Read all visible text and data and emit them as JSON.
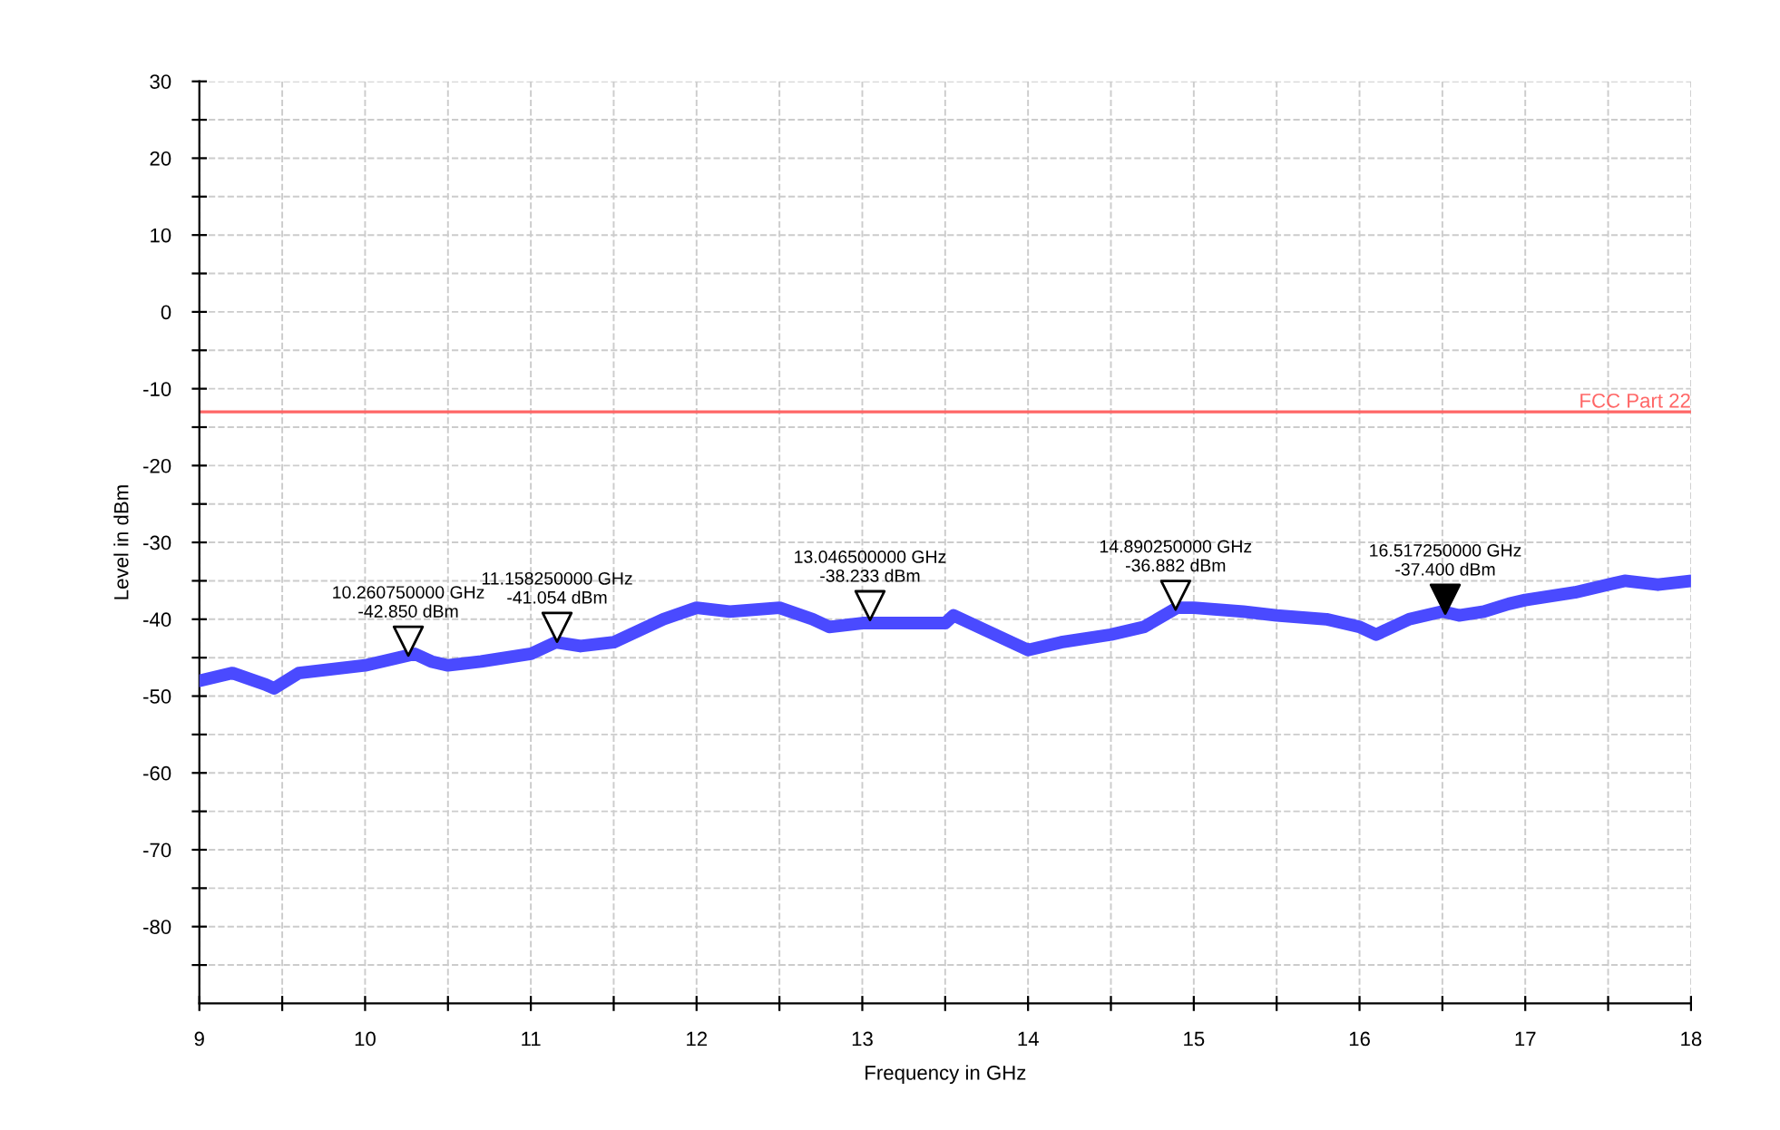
{
  "chart_data": {
    "type": "line",
    "xlabel": "Frequency in GHz",
    "ylabel": "Level in dBm",
    "xlim": [
      9,
      18
    ],
    "ylim": [
      -90,
      30
    ],
    "xticks": [
      9,
      {
        "value": 9.5,
        "label": null
      },
      10,
      {
        "value": 10.5,
        "label": null
      },
      11,
      {
        "value": 11.5,
        "label": null
      },
      12,
      {
        "value": 12.5,
        "label": null
      },
      13,
      {
        "value": 13.5,
        "label": null
      },
      14,
      {
        "value": 14.5,
        "label": null
      },
      15,
      {
        "value": 15.5,
        "label": null
      },
      16,
      {
        "value": 16.5,
        "label": null
      },
      17,
      {
        "value": 17.5,
        "label": null
      },
      18
    ],
    "yticks": [
      {
        "value": -85,
        "label": null
      },
      -80,
      {
        "value": -75,
        "label": null
      },
      -70,
      {
        "value": -65,
        "label": null
      },
      -60,
      {
        "value": -55,
        "label": null
      },
      -50,
      {
        "value": -45,
        "label": null
      },
      -40,
      {
        "value": -35,
        "label": null
      },
      -30,
      {
        "value": -25,
        "label": null
      },
      -20,
      {
        "value": -15,
        "label": null
      },
      -10,
      {
        "value": -5,
        "label": null
      },
      0,
      {
        "value": 5,
        "label": null
      },
      10,
      {
        "value": 15,
        "label": null
      },
      20,
      {
        "value": 25,
        "label": null
      },
      30
    ],
    "grid": true,
    "legend": false,
    "marker": "none",
    "line_style": "solid",
    "x": [
      9.0,
      9.2,
      9.4,
      9.45,
      9.6,
      9.8,
      10.0,
      10.2,
      10.3,
      10.4,
      10.5,
      10.7,
      11.0,
      11.15,
      11.3,
      11.5,
      11.6,
      11.8,
      12.0,
      12.2,
      12.5,
      12.7,
      12.8,
      13.0,
      13.2,
      13.5,
      13.55,
      13.7,
      13.9,
      14.0,
      14.2,
      14.5,
      14.7,
      14.9,
      15.0,
      15.3,
      15.5,
      15.8,
      16.0,
      16.1,
      16.3,
      16.5,
      16.6,
      16.75,
      16.9,
      17.0,
      17.3,
      17.6,
      17.8,
      18.0
    ],
    "series": [
      {
        "type": "scatter",
        "marker": "triangle",
        "color": "#000000",
        "colors": [
          "#ffffff",
          "#ffffff",
          "#ffffff",
          "#ffffff",
          "#000000"
        ],
        "x": [
          10.26075,
          11.15825,
          13.0465,
          14.89025,
          16.51725
        ],
        "values": [
          -42.85,
          -41.054,
          -38.233,
          -36.882,
          -37.4
        ]
      },
      {
        "color": "#4a4aff",
        "values": [
          -48,
          -47,
          -48.5,
          -49,
          -47,
          -46.5,
          -46,
          -45,
          -44.5,
          -45.5,
          -46,
          -45.5,
          -44.5,
          -43,
          -43.5,
          -43,
          -42,
          -40,
          -38.5,
          -39,
          -38.5,
          -40,
          -41,
          -40.5,
          -40.5,
          -40.5,
          -39.5,
          -41,
          -43,
          -44,
          -43,
          -42,
          -41,
          -38.5,
          -38.5,
          -39,
          -39.5,
          -40,
          -41,
          -42,
          -40,
          -39,
          -39.5,
          -39,
          -38,
          -37.5,
          -36.5,
          -35,
          -35.5,
          -35
        ]
      }
    ],
    "ref_lines": [
      {
        "axis": "y",
        "value": -13,
        "label": "FCC Part 22",
        "color": "#ff6666",
        "line_style": "solid"
      }
    ],
    "annotations": [
      {
        "text": "10.260750000 GHz\n-42.850 dBm",
        "x": 10.26075,
        "y": -42.85
      },
      {
        "text": "11.158250000 GHz\n-41.054 dBm",
        "x": 11.15825,
        "y": -41.054
      },
      {
        "text": "13.046500000 GHz\n-38.233 dBm",
        "x": 13.0465,
        "y": -38.233
      },
      {
        "text": "14.890250000 GHz\n-36.882 dBm",
        "x": 14.89025,
        "y": -36.882
      },
      {
        "text": "16.517250000 GHz\n-37.400 dBm",
        "x": 16.51725,
        "y": -37.4
      }
    ]
  }
}
